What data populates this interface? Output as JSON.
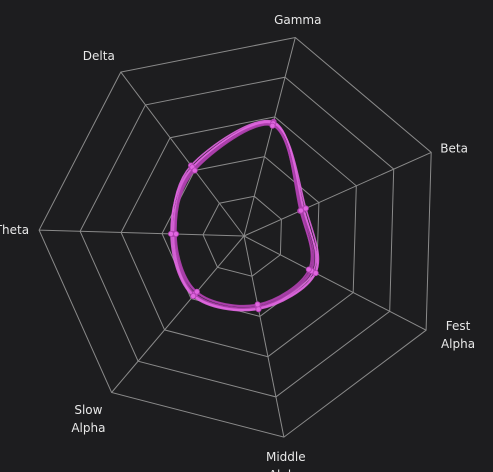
{
  "chart_data": {
    "type": "radar",
    "axes": [
      "Gamma",
      "Beta",
      "Fest Alpha",
      "Middle Alpha",
      "Slow Alpha",
      "Theta",
      "Delta"
    ],
    "axis_label_lines": [
      [
        "Gamma"
      ],
      [
        "Beta"
      ],
      [
        "Fest",
        "Alpha"
      ],
      [
        "Middle",
        "Alpha"
      ],
      [
        "Slow",
        "Alpha"
      ],
      [
        "Theta"
      ],
      [
        "Delta"
      ]
    ],
    "rlim": [
      0,
      5
    ],
    "rings": 5,
    "grid": true,
    "series": [
      {
        "values": [
          2.88,
          1.58,
          1.95,
          1.8,
          1.9,
          1.75,
          2.15
        ]
      },
      {
        "values": [
          2.82,
          1.5,
          1.82,
          1.72,
          1.8,
          1.7,
          2.02
        ]
      },
      {
        "values": [
          2.86,
          1.6,
          1.9,
          1.78,
          1.88,
          1.72,
          2.08
        ]
      },
      {
        "values": [
          2.8,
          1.55,
          1.85,
          1.76,
          1.85,
          1.68,
          2.05
        ]
      },
      {
        "values": [
          2.84,
          1.65,
          1.97,
          1.82,
          1.92,
          1.78,
          2.1
        ]
      },
      {
        "values": [
          2.78,
          1.52,
          1.78,
          1.7,
          1.78,
          1.66,
          2.0
        ]
      }
    ],
    "colors": {
      "background": "#1d1d1f",
      "grid": "#8a8a8a",
      "series": "#e066e0",
      "series_dark": "#b040b0",
      "label": "#e8e8e8"
    }
  }
}
